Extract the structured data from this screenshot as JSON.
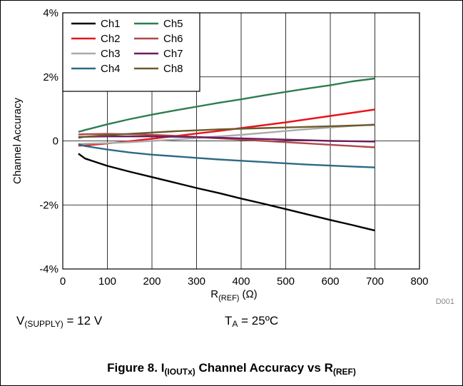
{
  "chart_data": {
    "type": "line",
    "title": "",
    "xlabel": {
      "main": "R",
      "sub": "(REF)",
      "unit": "(Ω)"
    },
    "ylabel": "Channel Accuracy",
    "xlim": [
      0,
      800
    ],
    "ylim": [
      -4,
      4
    ],
    "x_ticks": [
      0,
      100,
      200,
      300,
      400,
      500,
      600,
      700,
      800
    ],
    "x_tick_labels": [
      "0",
      "100",
      "200",
      "300",
      "400",
      "500",
      "600",
      "700",
      "800"
    ],
    "y_ticks": [
      -4,
      -2,
      0,
      2,
      4
    ],
    "y_tick_labels": [
      "-4%",
      "-2%",
      "0",
      "2%",
      "4%"
    ],
    "grid": true,
    "legend_position": "top-left",
    "x": [
      35,
      50,
      100,
      150,
      200,
      250,
      300,
      350,
      400,
      450,
      500,
      550,
      600,
      650,
      700
    ],
    "series": [
      {
        "name": "Ch1",
        "color": "#000000",
        "values": [
          -0.4,
          -0.55,
          -0.78,
          -0.96,
          -1.13,
          -1.3,
          -1.47,
          -1.63,
          -1.8,
          -1.96,
          -2.13,
          -2.3,
          -2.47,
          -2.63,
          -2.8
        ]
      },
      {
        "name": "Ch2",
        "color": "#e8141b",
        "values": [
          -0.15,
          -0.14,
          -0.08,
          -0.01,
          0.07,
          0.15,
          0.23,
          0.31,
          0.4,
          0.49,
          0.58,
          0.68,
          0.78,
          0.88,
          0.98
        ]
      },
      {
        "name": "Ch3",
        "color": "#aaaaaa",
        "values": [
          -0.1,
          -0.09,
          -0.07,
          -0.04,
          0.0,
          0.04,
          0.09,
          0.14,
          0.19,
          0.25,
          0.31,
          0.37,
          0.42,
          0.47,
          0.52
        ]
      },
      {
        "name": "Ch4",
        "color": "#2d6a85",
        "values": [
          -0.1,
          -0.16,
          -0.27,
          -0.36,
          -0.43,
          -0.48,
          -0.53,
          -0.58,
          -0.62,
          -0.66,
          -0.7,
          -0.74,
          -0.77,
          -0.8,
          -0.83
        ]
      },
      {
        "name": "Ch5",
        "color": "#2e7d4f",
        "values": [
          0.28,
          0.34,
          0.52,
          0.68,
          0.82,
          0.95,
          1.07,
          1.19,
          1.3,
          1.42,
          1.53,
          1.64,
          1.74,
          1.86,
          1.95
        ]
      },
      {
        "name": "Ch6",
        "color": "#b0474f",
        "values": [
          0.2,
          0.21,
          0.22,
          0.21,
          0.19,
          0.16,
          0.12,
          0.08,
          0.04,
          0.0,
          -0.04,
          -0.08,
          -0.12,
          -0.16,
          -0.2
        ]
      },
      {
        "name": "Ch7",
        "color": "#6b1d5e",
        "values": [
          0.12,
          0.13,
          0.14,
          0.14,
          0.14,
          0.13,
          0.12,
          0.1,
          0.08,
          0.06,
          0.04,
          0.02,
          0.0,
          -0.01,
          -0.02
        ]
      },
      {
        "name": "Ch8",
        "color": "#6b5a2b",
        "values": [
          0.1,
          0.13,
          0.18,
          0.22,
          0.26,
          0.3,
          0.33,
          0.36,
          0.38,
          0.4,
          0.42,
          0.44,
          0.46,
          0.48,
          0.5
        ]
      }
    ]
  },
  "figure_id": "D001",
  "conditions": {
    "supply": {
      "main": "V",
      "sub": "(SUPPLY)",
      "rest": " = 12 V"
    },
    "temperature": {
      "main": "T",
      "sub": "A",
      "rest": " = 25ºC"
    }
  },
  "caption": {
    "prefix": "Figure 8. I",
    "sub1": "(IOUTx)",
    "middle": " Channel Accuracy vs R",
    "sub2": "(REF)"
  }
}
